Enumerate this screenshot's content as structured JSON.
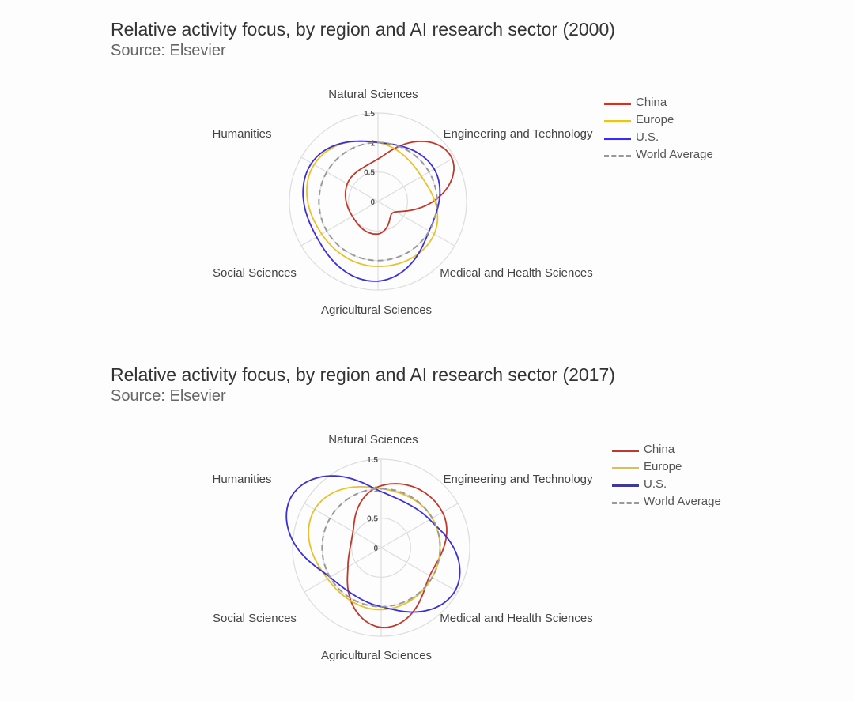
{
  "colors": {
    "China": "#c0392b",
    "Europe": "#e8c22a",
    "U.S.": "#3b2fd6",
    "World Average": "#999999",
    "grid": "#dddddd",
    "text": "#444444"
  },
  "chart_data": [
    {
      "type": "radar",
      "title": "Relative activity focus, by region and AI research sector (2000)",
      "subtitle": "Source: Elsevier",
      "axes": [
        "Natural Sciences",
        "Engineering and Technology",
        "Medical and Health Sciences",
        "Agricultural Sciences",
        "Social Sciences",
        "Humanities"
      ],
      "radial_ticks": [
        "0",
        "0.5",
        "1",
        "1.5"
      ],
      "range": [
        0,
        1.5
      ],
      "legend_position": "top-right",
      "series": [
        {
          "name": "China",
          "values": [
            0.72,
            1.45,
            0.35,
            0.55,
            0.5,
            0.6
          ],
          "style": "solid"
        },
        {
          "name": "Europe",
          "values": [
            1.0,
            0.85,
            1.1,
            1.1,
            1.1,
            1.25
          ],
          "style": "solid"
        },
        {
          "name": "U.S.",
          "values": [
            1.0,
            1.1,
            1.0,
            1.35,
            1.2,
            1.3
          ],
          "style": "solid"
        },
        {
          "name": "World Average",
          "values": [
            1.0,
            1.0,
            1.0,
            1.0,
            1.0,
            1.0
          ],
          "style": "dashed"
        }
      ]
    },
    {
      "type": "radar",
      "title": "Relative activity focus, by region and AI research sector (2017)",
      "subtitle": "Source: Elsevier",
      "axes": [
        "Natural Sciences",
        "Engineering and Technology",
        "Medical and Health Sciences",
        "Agricultural Sciences",
        "Social Sciences",
        "Humanities"
      ],
      "radial_ticks": [
        "0",
        "0.5",
        "1",
        "1.5"
      ],
      "range": [
        0,
        1.5
      ],
      "legend_position": "top-right",
      "series": [
        {
          "name": "China",
          "values": [
            1.05,
            1.2,
            0.95,
            1.35,
            0.65,
            0.55
          ],
          "style": "solid"
        },
        {
          "name": "Europe",
          "values": [
            1.0,
            1.0,
            1.0,
            1.05,
            1.05,
            1.3
          ],
          "style": "solid"
        },
        {
          "name": "U.S.",
          "values": [
            0.95,
            0.95,
            1.45,
            1.0,
            1.0,
            1.75
          ],
          "style": "solid"
        },
        {
          "name": "World Average",
          "values": [
            1.0,
            1.0,
            1.0,
            1.0,
            1.0,
            1.0
          ],
          "style": "dashed"
        }
      ]
    }
  ]
}
